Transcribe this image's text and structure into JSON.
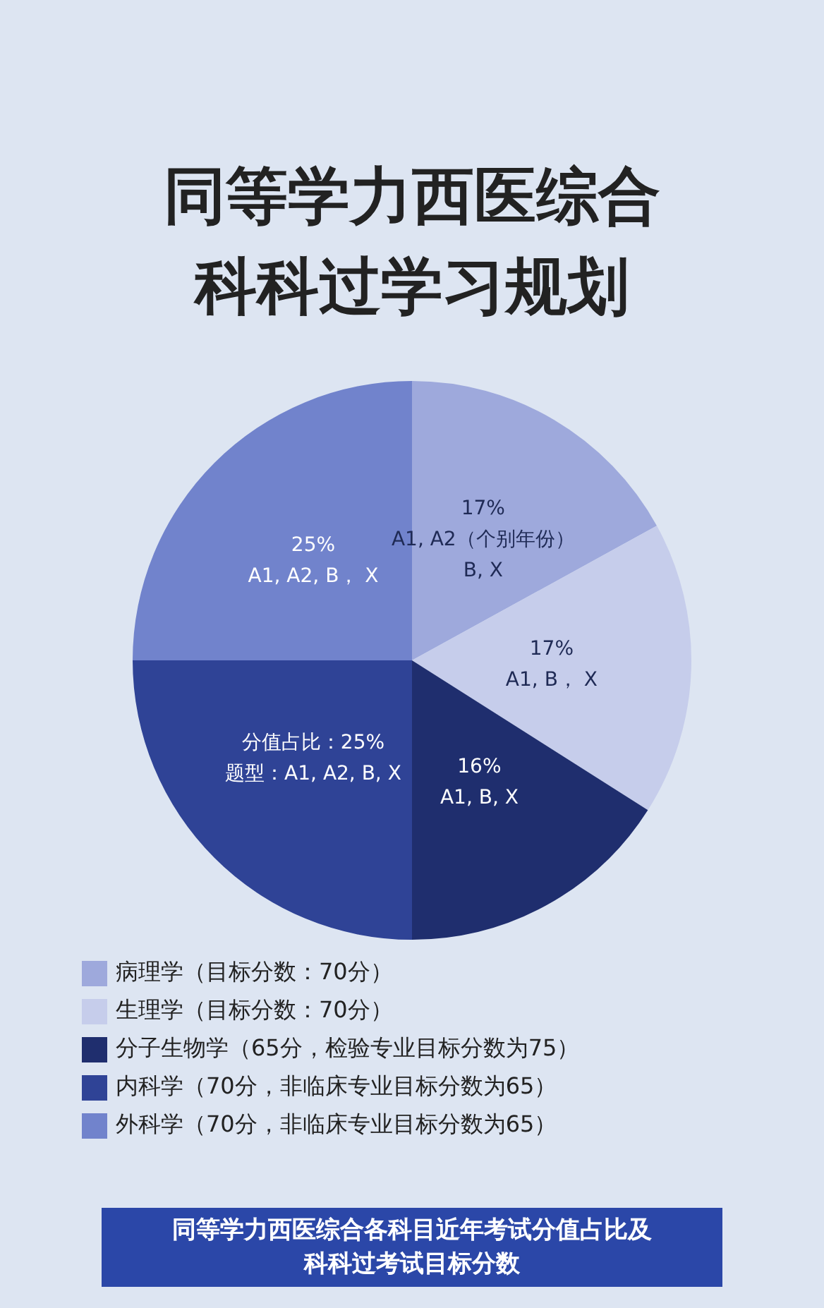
{
  "chart_data": {
    "type": "pie",
    "title": "同等学力西医综合科科过学习规划",
    "categories": [
      "病理学（目标分数：70分）",
      "生理学（目标分数：70分）",
      "分子生物学（65分，检验专业目标分数为75）",
      "内科学（70分，非临床专业目标分数为65）",
      "外科学（70分，非临床专业目标分数为65）"
    ],
    "values": [
      17,
      17,
      16,
      25,
      25
    ],
    "colors": [
      "#9ea9dc",
      "#c6cdeb",
      "#1f2e6e",
      "#2f4396",
      "#7183cc"
    ],
    "value_labels": [
      "17%\nA1, A2（个别年份）\nB, X",
      "17%\nA1, B， X",
      "16%\nA1, B, X",
      "分值占比：25%\n题型：A1, A2, B, X",
      "25%\nA1, A2, B， X"
    ],
    "legend": "bottom left",
    "annotations": [
      "同等学力西医综合各科目近年考试分值占比及科科过考试目标分数"
    ]
  }
}
